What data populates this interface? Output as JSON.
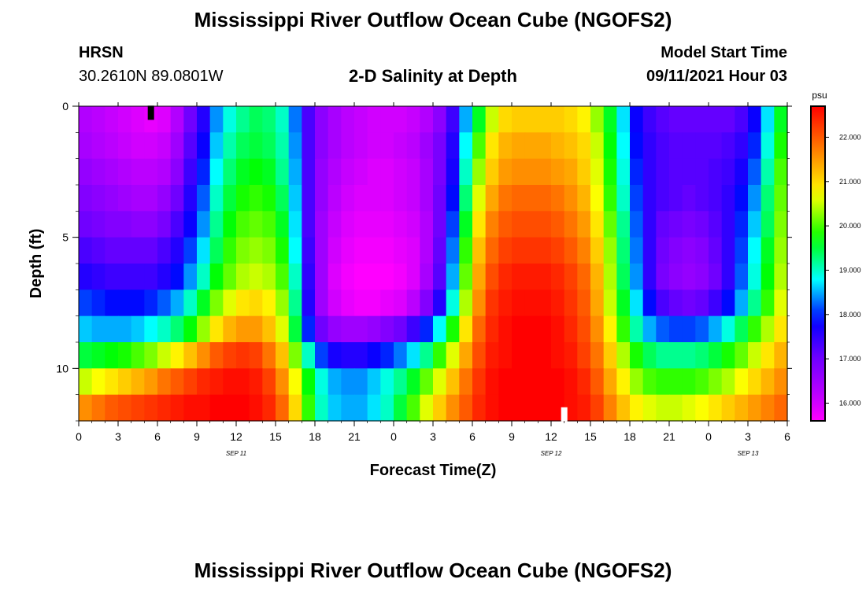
{
  "page": {
    "title_top": "Mississippi River Outflow Ocean Cube (NGOFS2)",
    "title_bottom": "Mississippi River Outflow Ocean Cube (NGOFS2)",
    "station": "HRSN",
    "coords": "30.2610N  89.0801W",
    "subtitle": "2-D Salinity at Depth",
    "model_start_label": "Model Start Time",
    "model_start_value": "09/11/2021 Hour 03"
  },
  "chart_data": {
    "type": "heatmap",
    "title": "2-D Salinity at Depth",
    "xlabel": "Forecast Time(Z)",
    "ylabel": "Depth (ft)",
    "xlim": [
      0,
      54
    ],
    "ylim": [
      12,
      0
    ],
    "x_ticks": [
      {
        "value": 0,
        "label": "0"
      },
      {
        "value": 3,
        "label": "3"
      },
      {
        "value": 6,
        "label": "6"
      },
      {
        "value": 9,
        "label": "9"
      },
      {
        "value": 12,
        "label": "12"
      },
      {
        "value": 15,
        "label": "15"
      },
      {
        "value": 18,
        "label": "18"
      },
      {
        "value": 21,
        "label": "21"
      },
      {
        "value": 24,
        "label": "0"
      },
      {
        "value": 27,
        "label": "3"
      },
      {
        "value": 30,
        "label": "6"
      },
      {
        "value": 33,
        "label": "9"
      },
      {
        "value": 36,
        "label": "12"
      },
      {
        "value": 39,
        "label": "15"
      },
      {
        "value": 42,
        "label": "18"
      },
      {
        "value": 45,
        "label": "21"
      },
      {
        "value": 48,
        "label": "0"
      },
      {
        "value": 51,
        "label": "3"
      },
      {
        "value": 54,
        "label": "6"
      }
    ],
    "date_labels": [
      {
        "value": 12,
        "label": "SEP 11"
      },
      {
        "value": 36,
        "label": "SEP 12"
      },
      {
        "value": 51,
        "label": "SEP 13"
      }
    ],
    "y_ticks": [
      {
        "value": 0,
        "label": "0"
      },
      {
        "value": 5,
        "label": "5"
      },
      {
        "value": 10,
        "label": "10"
      }
    ],
    "colorbar": {
      "unit": "psu",
      "min": 15.6,
      "max": 22.7,
      "ticks": [
        "16.000",
        "17.000",
        "18.000",
        "19.000",
        "20.000",
        "21.000",
        "22.000"
      ],
      "tick_values": [
        16,
        17,
        18,
        19,
        20,
        21,
        22
      ]
    },
    "markers": [
      {
        "name": "model-start-marker",
        "time": 5.5,
        "depth": 0.25,
        "color": "#000000"
      },
      {
        "name": "current-time-marker",
        "time": 37,
        "depth": 11.75,
        "color": "#ffffff"
      }
    ],
    "depths": [
      0.5,
      1.5,
      2.5,
      3.5,
      4.5,
      5.5,
      6.5,
      7.5,
      8.5,
      9.5,
      10.5,
      11.5
    ],
    "time_step": 1,
    "times": [
      0,
      1,
      2,
      3,
      4,
      5,
      6,
      7,
      8,
      9,
      10,
      11,
      12,
      13,
      14,
      15,
      16,
      17,
      18,
      19,
      20,
      21,
      22,
      23,
      24,
      25,
      26,
      27,
      28,
      29,
      30,
      31,
      32,
      33,
      34,
      35,
      36,
      37,
      38,
      39,
      40,
      41,
      42,
      43,
      44,
      45,
      46,
      47,
      48,
      49,
      50,
      51,
      52,
      53
    ],
    "salinity": [
      [
        16.3,
        16.2,
        16.1,
        16.0,
        15.9,
        15.8,
        15.9,
        16.3,
        17.0,
        17.6,
        18.4,
        18.9,
        19.2,
        19.4,
        19.3,
        19.0,
        18.3,
        17.3,
        16.7,
        16.4,
        16.2,
        16.1,
        16.0,
        16.0,
        16.0,
        16.1,
        16.3,
        16.7,
        17.4,
        18.5,
        19.6,
        20.5,
        21.0,
        21.1,
        21.1,
        21.1,
        21.1,
        21.0,
        20.8,
        20.3,
        19.6,
        18.7,
        17.8,
        17.4,
        17.2,
        17.1,
        17.1,
        17.1,
        17.1,
        17.1,
        17.3,
        17.8,
        18.7,
        19.6
      ],
      [
        16.4,
        16.3,
        16.2,
        16.1,
        16.0,
        16.0,
        16.1,
        16.5,
        17.2,
        17.8,
        18.6,
        19.1,
        19.4,
        19.5,
        19.4,
        19.1,
        18.4,
        17.3,
        16.7,
        16.4,
        16.2,
        16.1,
        16.0,
        16.0,
        16.1,
        16.2,
        16.5,
        16.9,
        17.6,
        18.8,
        20.0,
        20.9,
        21.3,
        21.4,
        21.4,
        21.4,
        21.3,
        21.2,
        21.0,
        20.5,
        19.7,
        18.8,
        17.9,
        17.5,
        17.3,
        17.2,
        17.2,
        17.2,
        17.2,
        17.3,
        17.5,
        18.0,
        18.9,
        19.8
      ],
      [
        16.6,
        16.5,
        16.4,
        16.3,
        16.2,
        16.2,
        16.3,
        16.7,
        17.4,
        18.0,
        18.8,
        19.3,
        19.6,
        19.7,
        19.6,
        19.2,
        18.5,
        17.3,
        16.6,
        16.3,
        16.1,
        16.0,
        15.9,
        15.9,
        16.0,
        16.1,
        16.4,
        16.9,
        17.7,
        19.0,
        20.3,
        21.1,
        21.5,
        21.6,
        21.6,
        21.6,
        21.5,
        21.4,
        21.1,
        20.6,
        19.8,
        18.9,
        18.0,
        17.5,
        17.3,
        17.2,
        17.2,
        17.2,
        17.3,
        17.4,
        17.7,
        18.2,
        19.1,
        20.0
      ],
      [
        16.8,
        16.7,
        16.6,
        16.5,
        16.4,
        16.4,
        16.6,
        17.0,
        17.6,
        18.2,
        19.0,
        19.5,
        19.8,
        19.9,
        19.8,
        19.4,
        18.6,
        17.3,
        16.6,
        16.2,
        16.0,
        15.9,
        15.9,
        15.9,
        16.0,
        16.1,
        16.4,
        17.0,
        17.9,
        19.3,
        20.6,
        21.4,
        21.8,
        21.9,
        21.9,
        21.9,
        21.8,
        21.6,
        21.3,
        20.7,
        19.9,
        19.0,
        18.1,
        17.5,
        17.3,
        17.2,
        17.1,
        17.2,
        17.3,
        17.5,
        17.9,
        18.4,
        19.3,
        20.1
      ],
      [
        17.0,
        16.9,
        16.8,
        16.8,
        16.7,
        16.7,
        16.9,
        17.3,
        17.8,
        18.4,
        19.2,
        19.7,
        20.0,
        20.1,
        20.0,
        19.6,
        18.7,
        17.3,
        16.5,
        16.1,
        15.9,
        15.8,
        15.8,
        15.8,
        15.9,
        16.0,
        16.3,
        17.0,
        18.1,
        19.6,
        20.9,
        21.7,
        22.0,
        22.1,
        22.1,
        22.1,
        22.0,
        21.8,
        21.5,
        20.9,
        20.1,
        19.2,
        18.2,
        17.5,
        17.1,
        17.0,
        16.9,
        17.0,
        17.2,
        17.5,
        18.0,
        18.6,
        19.4,
        20.2
      ],
      [
        17.3,
        17.2,
        17.1,
        17.1,
        17.1,
        17.1,
        17.3,
        17.6,
        18.1,
        18.7,
        19.4,
        19.9,
        20.2,
        20.3,
        20.2,
        19.8,
        18.8,
        17.4,
        16.5,
        16.0,
        15.8,
        15.7,
        15.7,
        15.7,
        15.8,
        15.9,
        16.3,
        17.1,
        18.3,
        19.9,
        21.2,
        21.9,
        22.2,
        22.3,
        22.3,
        22.3,
        22.2,
        22.0,
        21.7,
        21.1,
        20.3,
        19.3,
        18.3,
        17.5,
        17.0,
        16.8,
        16.7,
        16.8,
        17.1,
        17.5,
        18.1,
        18.8,
        19.6,
        20.3
      ],
      [
        17.6,
        17.5,
        17.4,
        17.4,
        17.4,
        17.4,
        17.6,
        17.9,
        18.4,
        19.0,
        19.7,
        20.1,
        20.4,
        20.5,
        20.4,
        20.0,
        19.0,
        17.5,
        16.5,
        15.9,
        15.7,
        15.6,
        15.6,
        15.6,
        15.7,
        15.9,
        16.4,
        17.2,
        18.5,
        20.1,
        21.4,
        22.1,
        22.4,
        22.5,
        22.5,
        22.5,
        22.4,
        22.2,
        21.9,
        21.3,
        20.4,
        19.4,
        18.4,
        17.5,
        16.9,
        16.7,
        16.6,
        16.7,
        17.0,
        17.5,
        18.2,
        18.9,
        19.7,
        20.4
      ],
      [
        18.1,
        18.0,
        17.9,
        17.9,
        17.9,
        18.0,
        18.2,
        18.5,
        19.0,
        19.6,
        20.2,
        20.6,
        20.9,
        21.0,
        20.8,
        20.3,
        19.2,
        17.6,
        16.5,
        16.0,
        15.8,
        15.7,
        15.7,
        15.8,
        15.9,
        16.2,
        16.8,
        17.6,
        18.9,
        20.4,
        21.6,
        22.3,
        22.5,
        22.6,
        22.6,
        22.6,
        22.5,
        22.3,
        22.0,
        21.4,
        20.5,
        19.6,
        18.7,
        17.9,
        17.3,
        17.1,
        17.0,
        17.1,
        17.4,
        17.9,
        18.5,
        19.2,
        19.9,
        20.6
      ],
      [
        18.6,
        18.5,
        18.5,
        18.5,
        18.6,
        18.8,
        19.0,
        19.3,
        19.7,
        20.3,
        20.9,
        21.3,
        21.5,
        21.5,
        21.2,
        20.6,
        19.5,
        18.0,
        17.0,
        16.6,
        16.5,
        16.5,
        16.6,
        16.8,
        17.0,
        17.4,
        18.0,
        18.8,
        19.8,
        20.9,
        21.9,
        22.4,
        22.6,
        22.7,
        22.7,
        22.7,
        22.6,
        22.4,
        22.1,
        21.6,
        20.8,
        19.9,
        19.1,
        18.5,
        18.2,
        18.1,
        18.1,
        18.2,
        18.5,
        18.9,
        19.4,
        19.9,
        20.4,
        20.9
      ],
      [
        19.5,
        19.6,
        19.7,
        19.8,
        20.0,
        20.2,
        20.5,
        20.8,
        21.2,
        21.6,
        22.0,
        22.2,
        22.3,
        22.2,
        21.8,
        21.2,
        20.2,
        19.0,
        18.1,
        17.7,
        17.6,
        17.6,
        17.8,
        18.0,
        18.3,
        18.7,
        19.2,
        19.9,
        20.6,
        21.4,
        22.1,
        22.5,
        22.6,
        22.7,
        22.7,
        22.7,
        22.6,
        22.5,
        22.2,
        21.8,
        21.1,
        20.4,
        19.8,
        19.4,
        19.2,
        19.2,
        19.2,
        19.3,
        19.5,
        19.8,
        20.1,
        20.5,
        20.9,
        21.3
      ],
      [
        20.5,
        20.7,
        20.9,
        21.1,
        21.3,
        21.5,
        21.8,
        22.0,
        22.2,
        22.4,
        22.5,
        22.6,
        22.6,
        22.5,
        22.2,
        21.6,
        20.7,
        19.7,
        18.9,
        18.5,
        18.4,
        18.4,
        18.6,
        18.9,
        19.2,
        19.6,
        20.1,
        20.6,
        21.2,
        21.8,
        22.3,
        22.6,
        22.7,
        22.7,
        22.7,
        22.7,
        22.7,
        22.6,
        22.4,
        22.0,
        21.4,
        20.8,
        20.3,
        20.0,
        19.9,
        19.9,
        19.9,
        20.0,
        20.2,
        20.4,
        20.7,
        21.0,
        21.3,
        21.6
      ],
      [
        21.6,
        21.8,
        22.0,
        22.1,
        22.2,
        22.3,
        22.4,
        22.5,
        22.6,
        22.6,
        22.7,
        22.7,
        22.7,
        22.6,
        22.4,
        21.9,
        21.0,
        19.9,
        19.0,
        18.6,
        18.5,
        18.5,
        18.7,
        19.0,
        19.5,
        20.0,
        20.6,
        21.1,
        21.6,
        22.0,
        22.4,
        22.6,
        22.7,
        22.7,
        22.7,
        22.7,
        22.7,
        22.6,
        22.5,
        22.2,
        21.7,
        21.2,
        20.8,
        20.6,
        20.5,
        20.5,
        20.6,
        20.7,
        20.9,
        21.1,
        21.3,
        21.5,
        21.7,
        21.9
      ]
    ]
  }
}
